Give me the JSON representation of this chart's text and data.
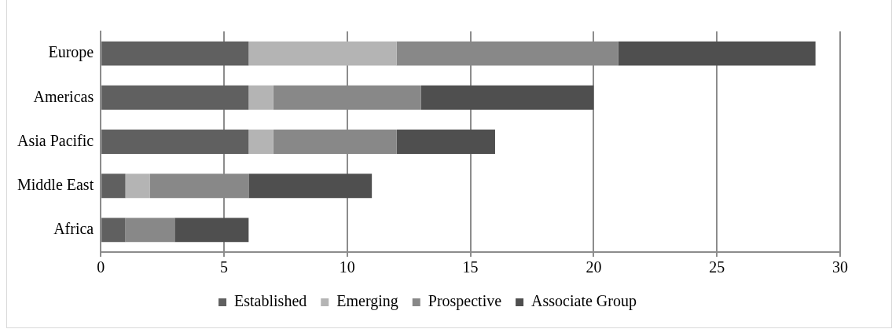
{
  "chart_data": {
    "type": "bar",
    "orientation": "horizontal",
    "stacked": true,
    "categories": [
      "Europe",
      "Americas",
      "Asia Pacific",
      "Middle East",
      "Africa"
    ],
    "series": [
      {
        "name": "Established",
        "color": "#606060",
        "values": [
          6,
          6,
          6,
          1,
          1
        ]
      },
      {
        "name": "Emerging",
        "color": "#b4b4b4",
        "values": [
          6,
          1,
          1,
          1,
          0
        ]
      },
      {
        "name": "Prospective",
        "color": "#888888",
        "values": [
          9,
          6,
          5,
          4,
          2
        ]
      },
      {
        "name": "Associate Group",
        "color": "#4f4f4f",
        "values": [
          8,
          7,
          4,
          5,
          3
        ]
      }
    ],
    "xlim": [
      0,
      30
    ],
    "xticks": [
      0,
      5,
      10,
      15,
      20,
      25,
      30
    ],
    "grid": "x",
    "legend": "bottom"
  }
}
